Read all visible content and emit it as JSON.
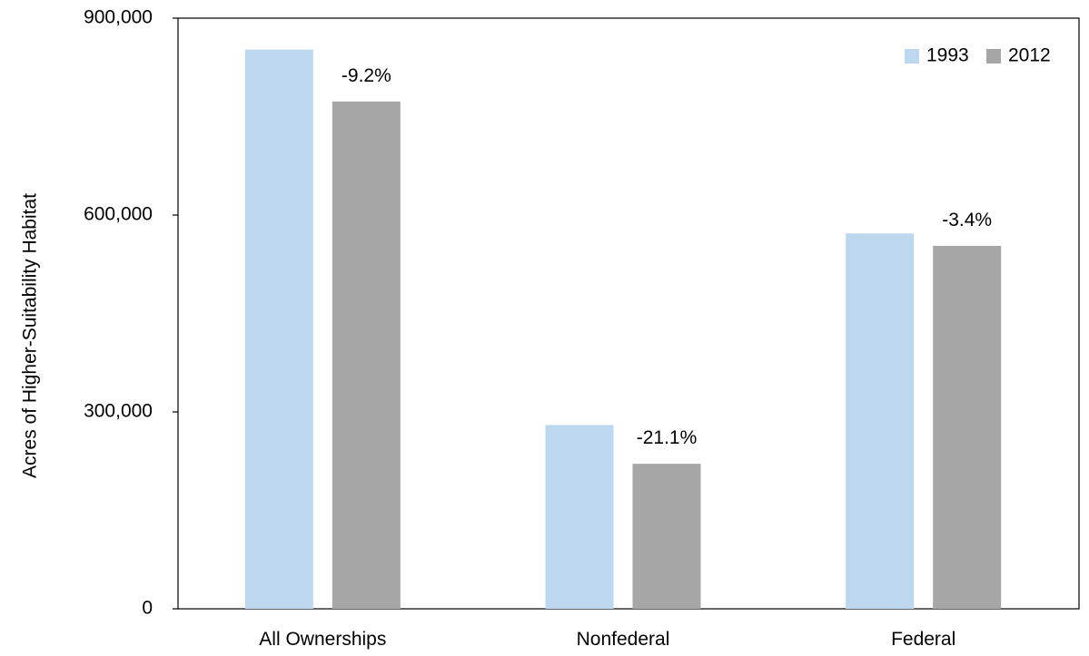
{
  "chart_data": {
    "type": "bar",
    "title": "",
    "xlabel": "",
    "ylabel": "Acres of Higher-Suitability Habitat",
    "ylim": [
      0,
      900000
    ],
    "yticks": [
      0,
      300000,
      600000,
      900000
    ],
    "ytick_labels": [
      "0",
      "300,000",
      "600,000",
      "900,000"
    ],
    "categories": [
      "All Ownerships",
      "Nonfederal",
      "Federal"
    ],
    "series": [
      {
        "name": "1993",
        "color": "#bdd7ee",
        "values": [
          852000,
          280000,
          572000
        ]
      },
      {
        "name": "2012",
        "color": "#a6a6a6",
        "values": [
          773000,
          221000,
          553000
        ]
      }
    ],
    "annotations": [
      "-9.2%",
      "-21.1%",
      "-3.4%"
    ],
    "legend_position": "top-right",
    "grid": false
  }
}
